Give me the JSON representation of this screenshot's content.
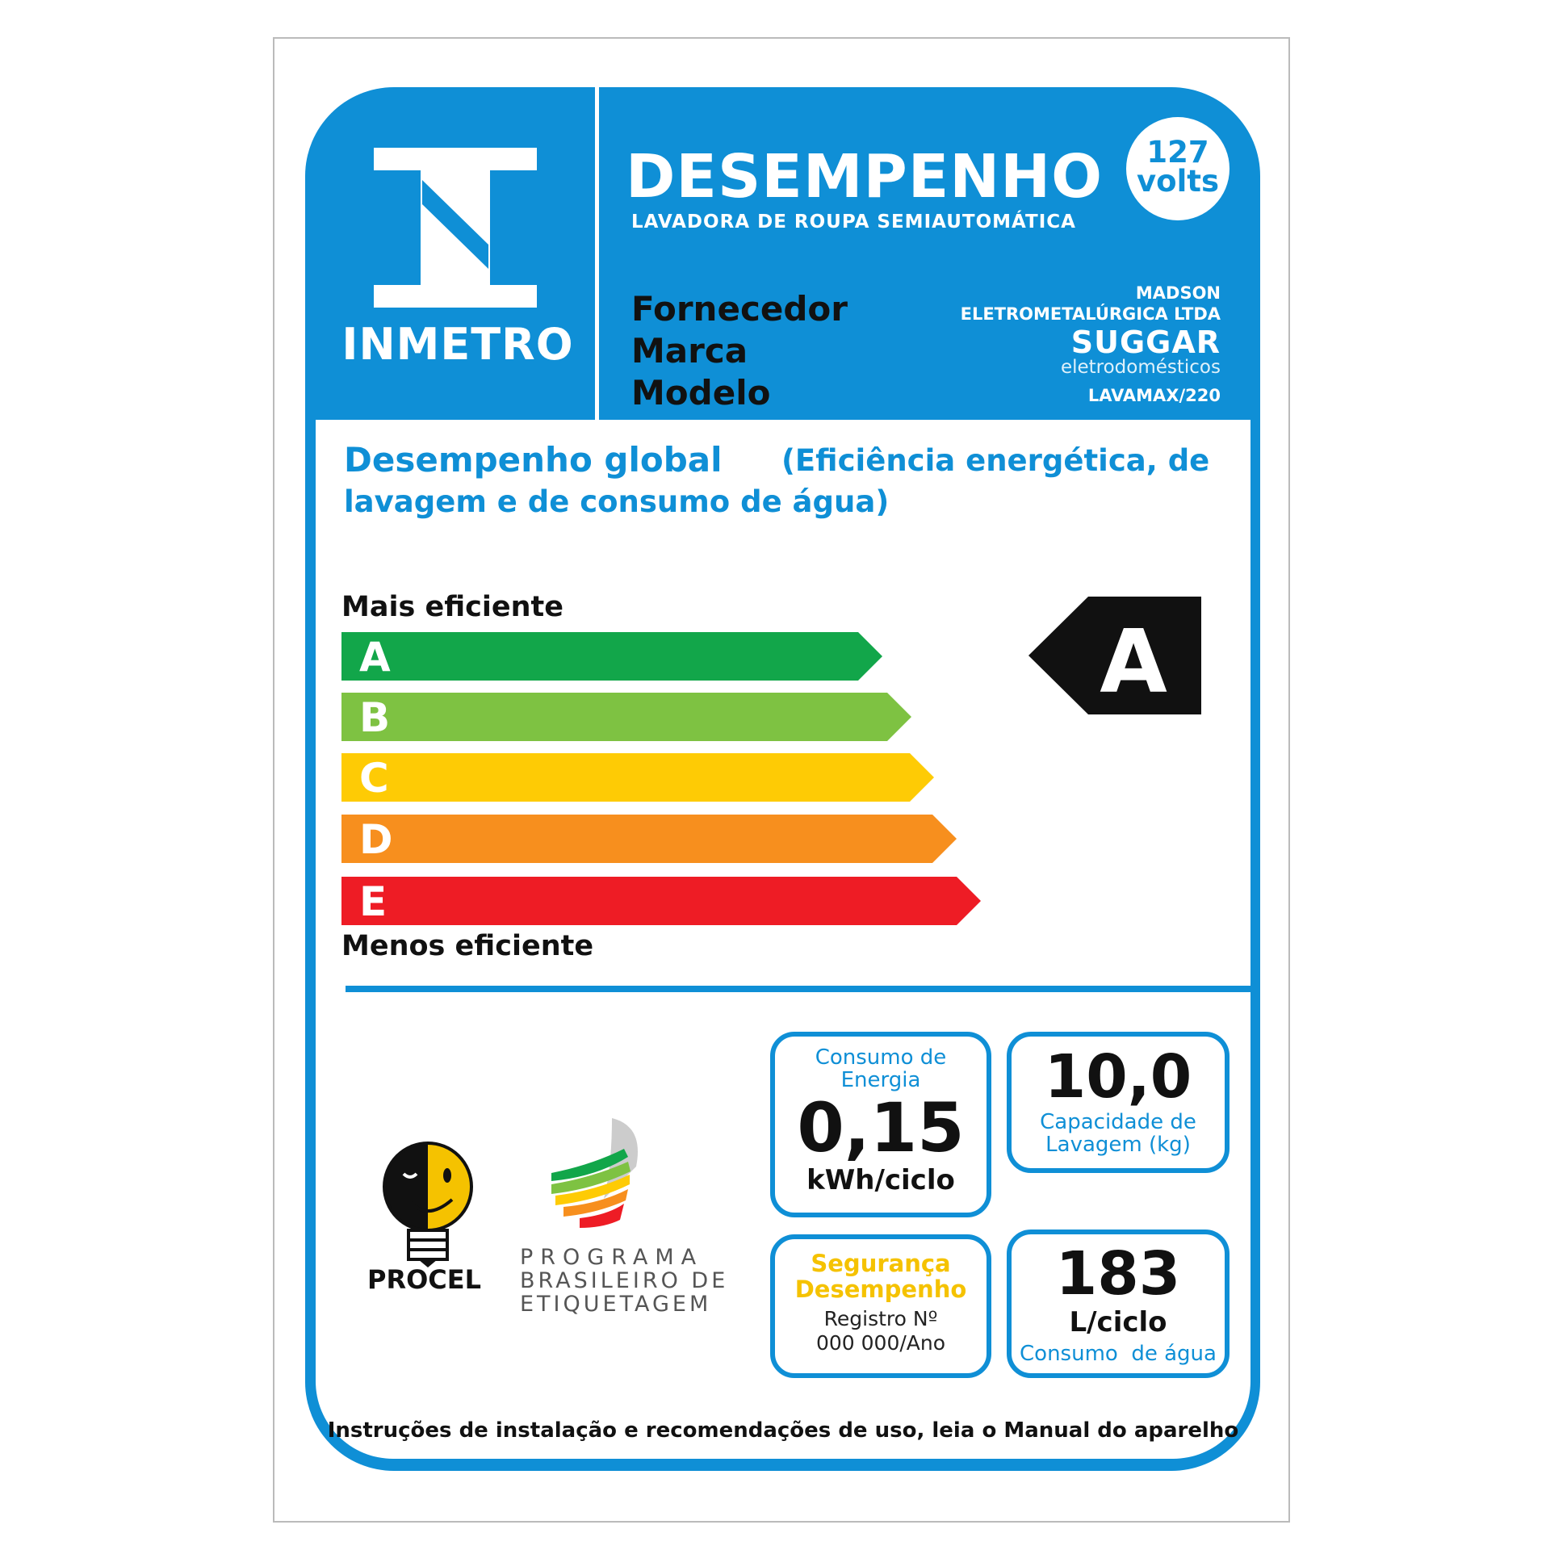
{
  "header": {
    "logo_text": "INMETRO",
    "title": "DESEMPENHO",
    "subtitle": "LAVADORA DE ROUPA SEMIAUTOMÁTICA",
    "voltage_value": "127",
    "voltage_unit": "volts"
  },
  "info": {
    "labels": [
      "Fornecedor",
      "Marca",
      "Modelo"
    ],
    "supplier_line1": "MADSON",
    "supplier_line2": "ELETROMETALÚRGICA LTDA",
    "brand": "SUGGAR",
    "brand_sub": "eletrodomésticos",
    "model": "LAVAMAX/220"
  },
  "rating": {
    "heading": "Desempenho global",
    "heading_note": "(Eficiência energética, de",
    "heading_note2": "lavagem e de consumo de água)",
    "top_label": "Mais eficiente",
    "bottom_label": "Menos eficiente",
    "classes": [
      {
        "letter": "A",
        "color": "#12a64a"
      },
      {
        "letter": "B",
        "color": "#7ec242"
      },
      {
        "letter": "C",
        "color": "#fecb05"
      },
      {
        "letter": "D",
        "color": "#f78f1e"
      },
      {
        "letter": "E",
        "color": "#ee1c25"
      }
    ],
    "current": "A"
  },
  "specs": {
    "energy": {
      "label": "Consumo de Energia",
      "value": "0,15",
      "unit": "kWh/ciclo"
    },
    "capacity": {
      "value": "10,0",
      "label_line1": "Capacidade de",
      "label_line2": "Lavagem (kg)"
    },
    "safety": {
      "line1": "Segurança",
      "line2": "Desempenho",
      "reg1": "Registro Nº",
      "reg2": "000 000/Ano"
    },
    "water": {
      "value": "183",
      "unit": "L/ciclo",
      "label": "Consumo  de água"
    }
  },
  "logos": {
    "procel": "PROCEL",
    "pbe_line1": "PROGRAMA",
    "pbe_line2": "BRASILEIRO DE",
    "pbe_line3": "ETIQUETAGEM"
  },
  "footer": "Instruções de instalação e recomendações de uso, leia o Manual do aparelho",
  "colors": {
    "brand_blue": "#0f8fd6",
    "safety_yellow": "#f5c200"
  }
}
